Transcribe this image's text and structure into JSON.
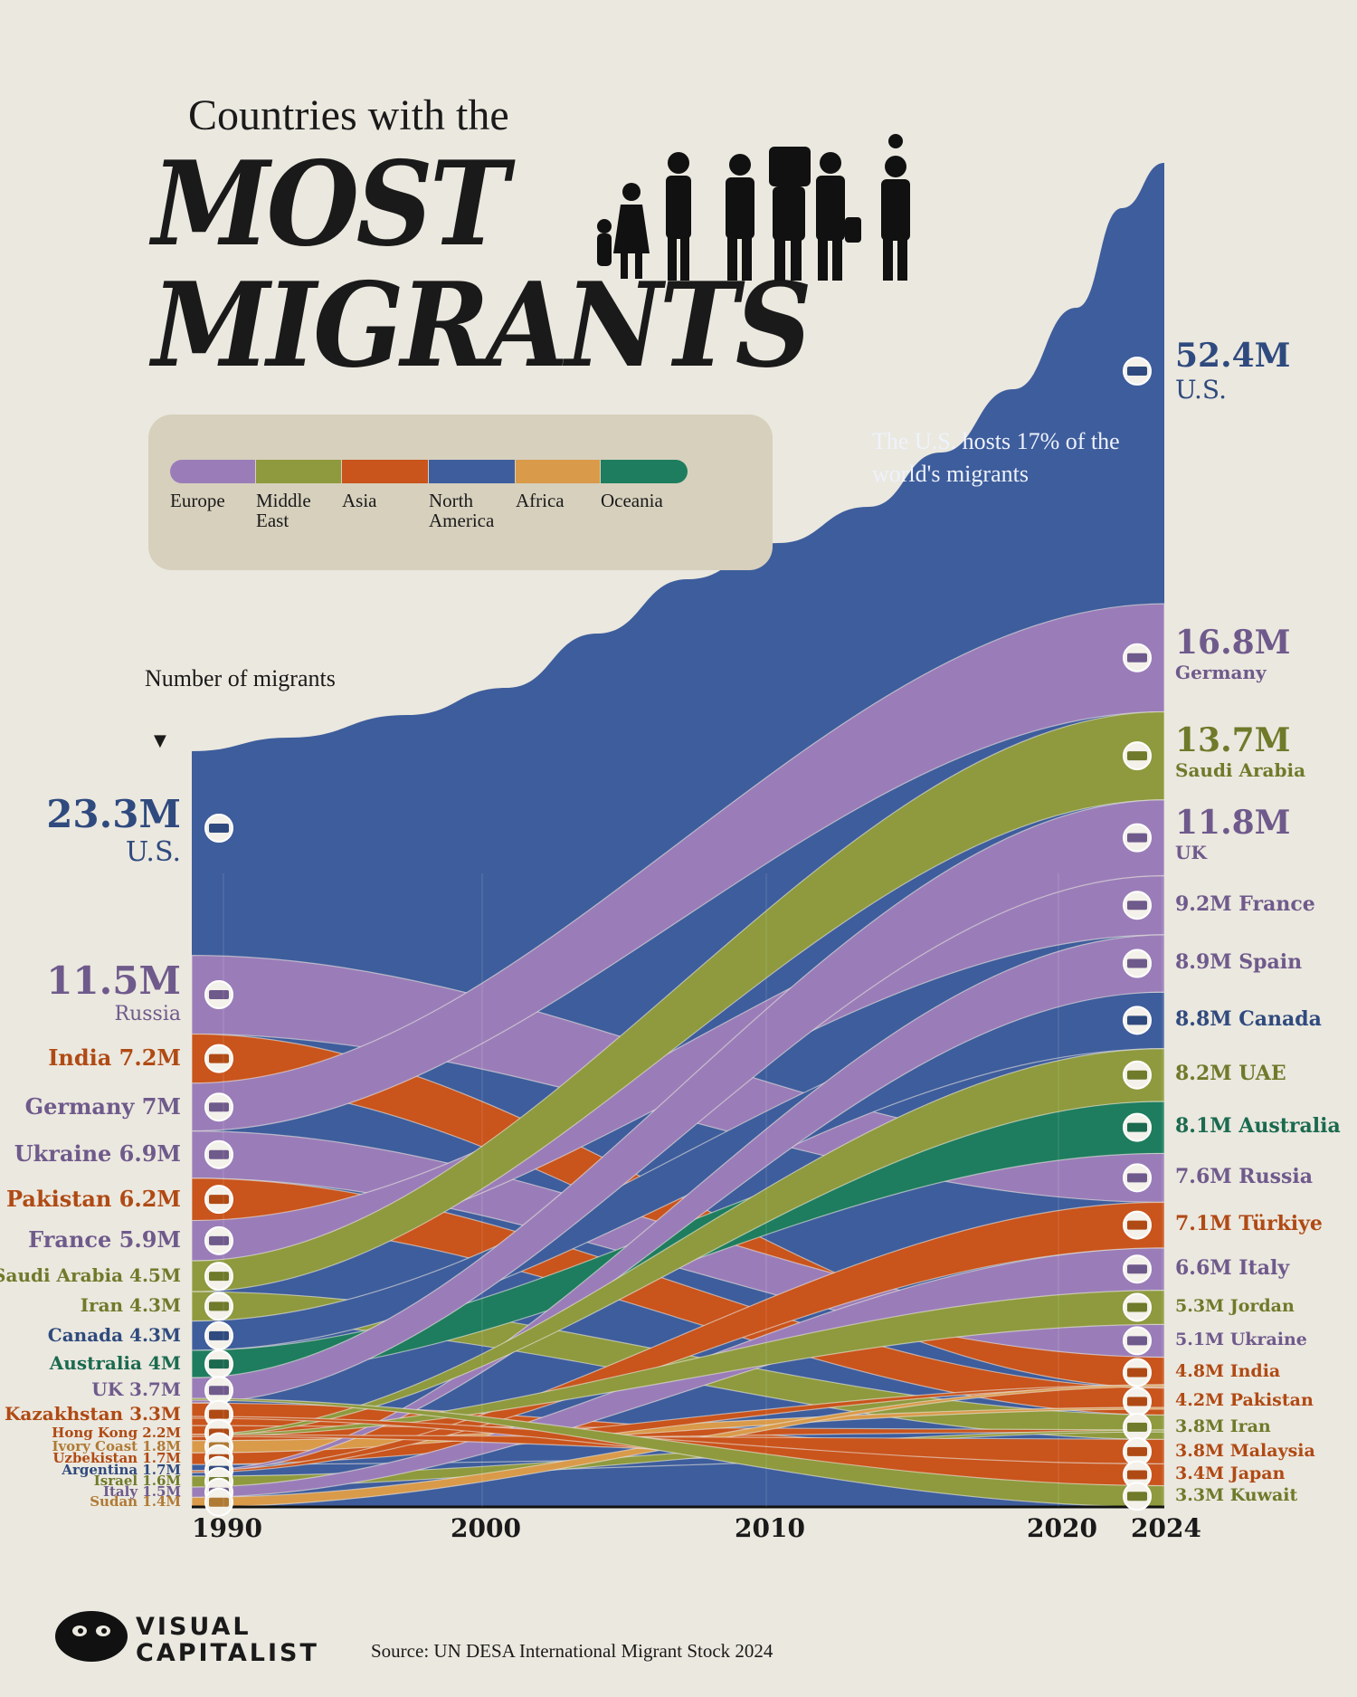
{
  "title": {
    "line1": "Countries with the",
    "line2": "MOST",
    "line3": "MIGRANTS"
  },
  "legend": [
    {
      "label": "Europe",
      "color": "#9a7db8"
    },
    {
      "label": "Middle\nEast",
      "color": "#8e9a3d"
    },
    {
      "label": "Asia",
      "color": "#c9541c"
    },
    {
      "label": "North\nAmerica",
      "color": "#3e5d9c"
    },
    {
      "label": "Africa",
      "color": "#d99a4a"
    },
    {
      "label": "Oceania",
      "color": "#1e7d5e"
    }
  ],
  "annotation": "The U.S. hosts 17% of the world's migrants",
  "y_label": "Number of migrants",
  "source": "Source: UN DESA International Migrant Stock 2024",
  "brand": {
    "line1": "VISUAL",
    "line2": "CAPITALIST"
  },
  "chart_data": {
    "type": "area",
    "x_ticks": [
      "1990",
      "2000",
      "2010",
      "2020",
      "2024"
    ],
    "start_year": [
      {
        "country": "U.S.",
        "value": "23.3M",
        "region": "North America"
      },
      {
        "country": "Russia",
        "value": "11.5M",
        "region": "Europe"
      },
      {
        "country": "India",
        "value": "7.2M",
        "region": "Asia"
      },
      {
        "country": "Germany",
        "value": "7M",
        "region": "Europe"
      },
      {
        "country": "Ukraine",
        "value": "6.9M",
        "region": "Europe"
      },
      {
        "country": "Pakistan",
        "value": "6.2M",
        "region": "Asia"
      },
      {
        "country": "France",
        "value": "5.9M",
        "region": "Europe"
      },
      {
        "country": "Saudi Arabia",
        "value": "4.5M",
        "region": "Middle East"
      },
      {
        "country": "Iran",
        "value": "4.3M",
        "region": "Middle East"
      },
      {
        "country": "Canada",
        "value": "4.3M",
        "region": "North America"
      },
      {
        "country": "Australia",
        "value": "4M",
        "region": "Oceania"
      },
      {
        "country": "UK",
        "value": "3.7M",
        "region": "Europe"
      },
      {
        "country": "Kazakhstan",
        "value": "3.3M",
        "region": "Asia"
      },
      {
        "country": "Hong Kong",
        "value": "2.2M",
        "region": "Asia"
      },
      {
        "country": "Ivory Coast",
        "value": "1.8M",
        "region": "Africa"
      },
      {
        "country": "Uzbekistan",
        "value": "1.7M",
        "region": "Asia"
      },
      {
        "country": "Argentina",
        "value": "1.7M",
        "region": "North America"
      },
      {
        "country": "Israel",
        "value": "1.6M",
        "region": "Middle East"
      },
      {
        "country": "Italy",
        "value": "1.5M",
        "region": "Europe"
      },
      {
        "country": "Sudan",
        "value": "1.4M",
        "region": "Africa"
      }
    ],
    "end_year": [
      {
        "country": "U.S.",
        "value": "52.4M",
        "region": "North America"
      },
      {
        "country": "Germany",
        "value": "16.8M",
        "region": "Europe"
      },
      {
        "country": "Saudi Arabia",
        "value": "13.7M",
        "region": "Middle East"
      },
      {
        "country": "UK",
        "value": "11.8M",
        "region": "Europe"
      },
      {
        "country": "France",
        "value": "9.2M",
        "region": "Europe"
      },
      {
        "country": "Spain",
        "value": "8.9M",
        "region": "Europe"
      },
      {
        "country": "Canada",
        "value": "8.8M",
        "region": "North America"
      },
      {
        "country": "UAE",
        "value": "8.2M",
        "region": "Middle East"
      },
      {
        "country": "Australia",
        "value": "8.1M",
        "region": "Oceania"
      },
      {
        "country": "Russia",
        "value": "7.6M",
        "region": "Europe"
      },
      {
        "country": "Türkiye",
        "value": "7.1M",
        "region": "Asia"
      },
      {
        "country": "Italy",
        "value": "6.6M",
        "region": "Europe"
      },
      {
        "country": "Jordan",
        "value": "5.3M",
        "region": "Middle East"
      },
      {
        "country": "Ukraine",
        "value": "5.1M",
        "region": "Europe"
      },
      {
        "country": "India",
        "value": "4.8M",
        "region": "Asia"
      },
      {
        "country": "Pakistan",
        "value": "4.2M",
        "region": "Asia"
      },
      {
        "country": "Iran",
        "value": "3.8M",
        "region": "Middle East"
      },
      {
        "country": "Malaysia",
        "value": "3.8M",
        "region": "Asia"
      },
      {
        "country": "Japan",
        "value": "3.4M",
        "region": "Asia"
      },
      {
        "country": "Kuwait",
        "value": "3.3M",
        "region": "Middle East"
      }
    ]
  }
}
